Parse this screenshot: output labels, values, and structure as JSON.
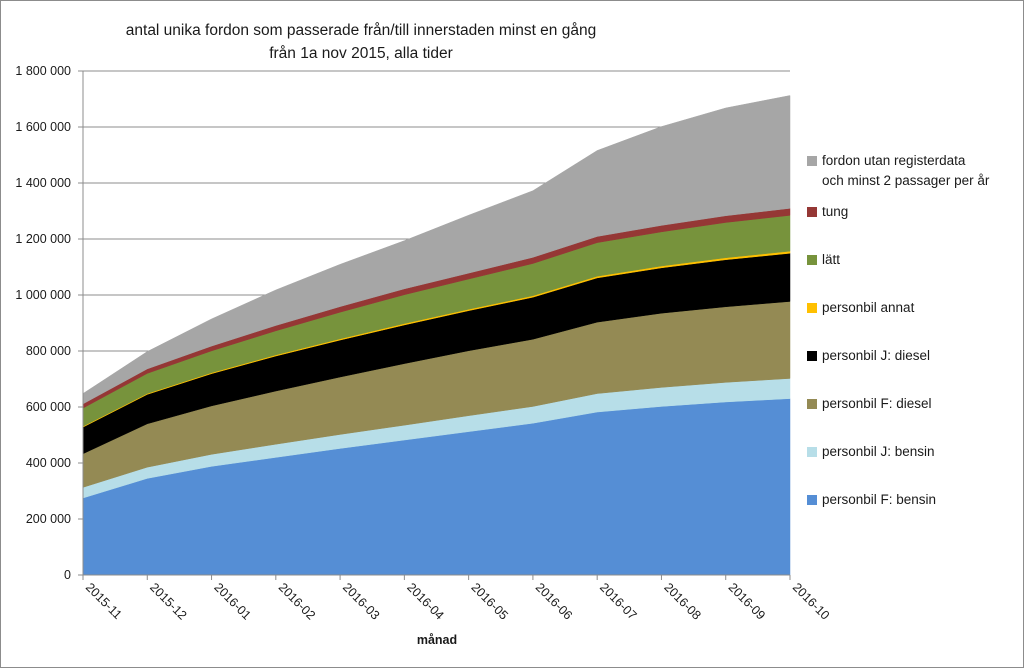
{
  "chart_data": {
    "type": "area",
    "stacked": true,
    "title": [
      "antal unika fordon som passerade från/till innerstaden minst en gång",
      "från 1a nov 2015, alla tider"
    ],
    "xlabel": "månad",
    "ylabel": "",
    "ylim": [
      0,
      1800000
    ],
    "yticks": [
      0,
      200000,
      400000,
      600000,
      800000,
      1000000,
      1200000,
      1400000,
      1600000,
      1800000
    ],
    "ytick_labels": [
      "0",
      "200 000",
      "400 000",
      "600 000",
      "800 000",
      "1 000 000",
      "1 200 000",
      "1 400 000",
      "1 600 000",
      "1 800 000"
    ],
    "grid": "horizontal",
    "legend_position": "right",
    "categories": [
      "2015-11",
      "2015-12",
      "2016-01",
      "2016-02",
      "2016-03",
      "2016-04",
      "2016-05",
      "2016-06",
      "2016-07",
      "2016-08",
      "2016-09",
      "2016-10"
    ],
    "series": [
      {
        "name": "personbil F: bensin",
        "color": "#558ed5",
        "values": [
          275000,
          345000,
          388000,
          420000,
          452000,
          482000,
          512000,
          542000,
          582000,
          602000,
          618000,
          630000
        ]
      },
      {
        "name": "personbil J: bensin",
        "color": "#b7dee8",
        "values": [
          38000,
          40000,
          43000,
          47000,
          50000,
          53000,
          57000,
          60000,
          66000,
          68000,
          70000,
          72000
        ]
      },
      {
        "name": "personbil F: diesel",
        "color": "#948a54",
        "values": [
          120000,
          155000,
          173000,
          190000,
          205000,
          220000,
          232000,
          240000,
          255000,
          265000,
          270000,
          275000
        ]
      },
      {
        "name": "personbil J: diesel",
        "color": "#000000",
        "values": [
          95000,
          105000,
          115000,
          125000,
          132000,
          138000,
          143000,
          150000,
          158000,
          162000,
          168000,
          172000
        ]
      },
      {
        "name": "personbil annat",
        "color": "#ffc000",
        "values": [
          3000,
          3000,
          3500,
          4000,
          4500,
          5000,
          5000,
          5500,
          6000,
          6500,
          7000,
          7500
        ]
      },
      {
        "name": "lätt",
        "color": "#77933c",
        "values": [
          65000,
          72000,
          78000,
          86000,
          95000,
          103000,
          108000,
          115000,
          120000,
          122000,
          126000,
          128000
        ]
      },
      {
        "name": "tung",
        "color": "#953735",
        "values": [
          15000,
          16000,
          17000,
          19000,
          20000,
          21000,
          21000,
          22000,
          22000,
          23000,
          24000,
          25000
        ]
      },
      {
        "name": "fordon utan registerdata\noch minst 2 passager per år",
        "color": "#a6a6a6",
        "values": [
          37000,
          62000,
          97000,
          127000,
          151000,
          172000,
          207000,
          238000,
          307000,
          353000,
          385000,
          403000
        ]
      }
    ]
  }
}
